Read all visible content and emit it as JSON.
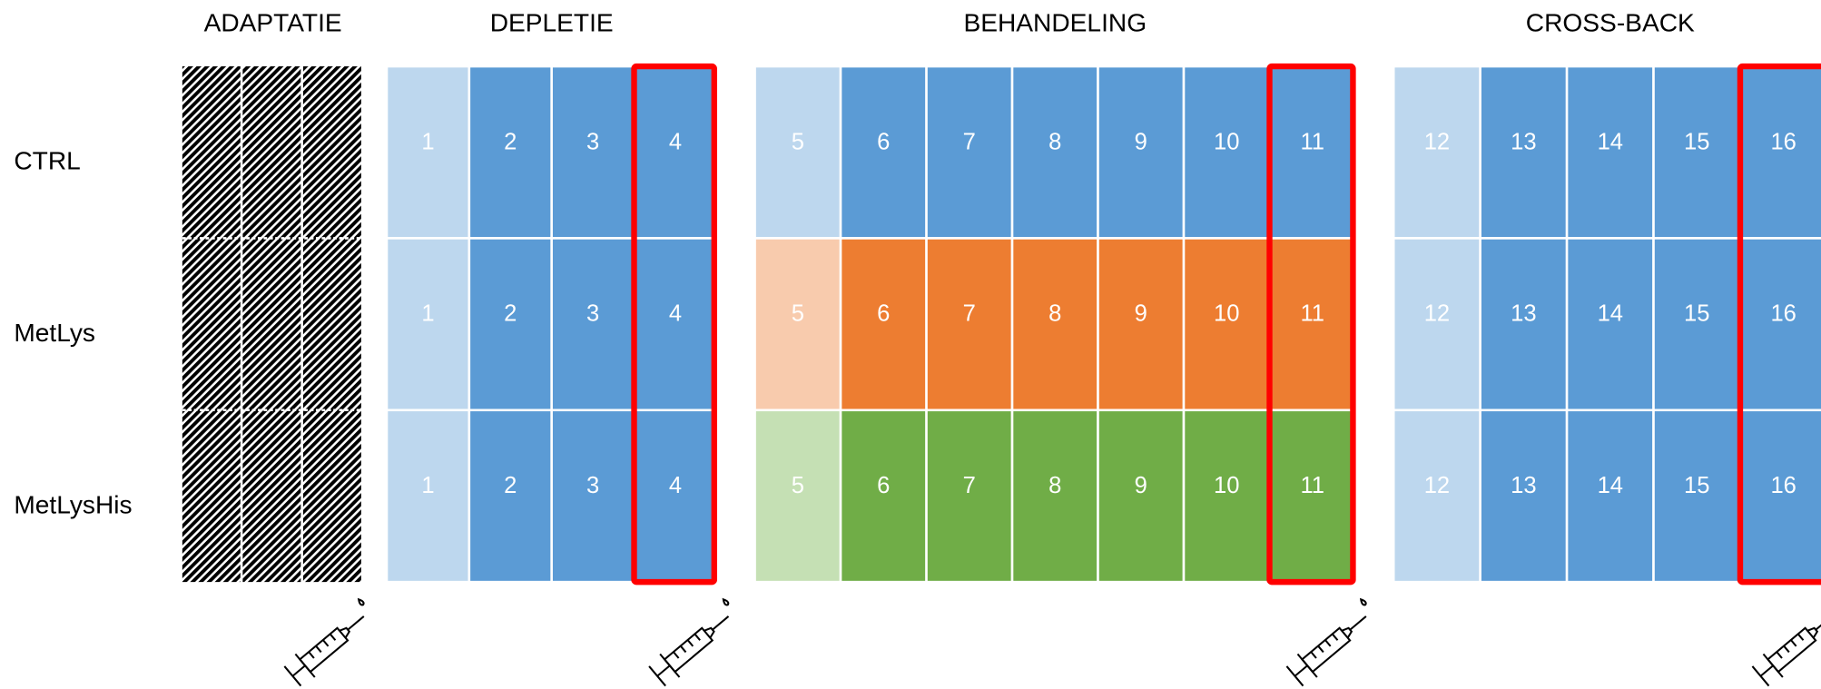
{
  "sections": [
    {
      "title": "ADAPTATIE"
    },
    {
      "title": "DEPLETIE"
    },
    {
      "title": "BEHANDELING"
    },
    {
      "title": "CROSS-BACK"
    }
  ],
  "groups": [
    {
      "label": "CTRL",
      "cells": [
        [
          1,
          2,
          3,
          4
        ],
        [
          5,
          6,
          7,
          8,
          9,
          10,
          11
        ],
        [
          12,
          13,
          14,
          15,
          16
        ]
      ]
    },
    {
      "label": "MetLys",
      "cells": [
        [
          1,
          2,
          3,
          4
        ],
        [
          5,
          6,
          7,
          8,
          9,
          10,
          11
        ],
        [
          12,
          13,
          14,
          15,
          16
        ]
      ]
    },
    {
      "label": "MetLysHis",
      "cells": [
        [
          1,
          2,
          3,
          4
        ],
        [
          5,
          6,
          7,
          8,
          9,
          10,
          11
        ],
        [
          12,
          13,
          14,
          15,
          16
        ]
      ]
    }
  ]
}
